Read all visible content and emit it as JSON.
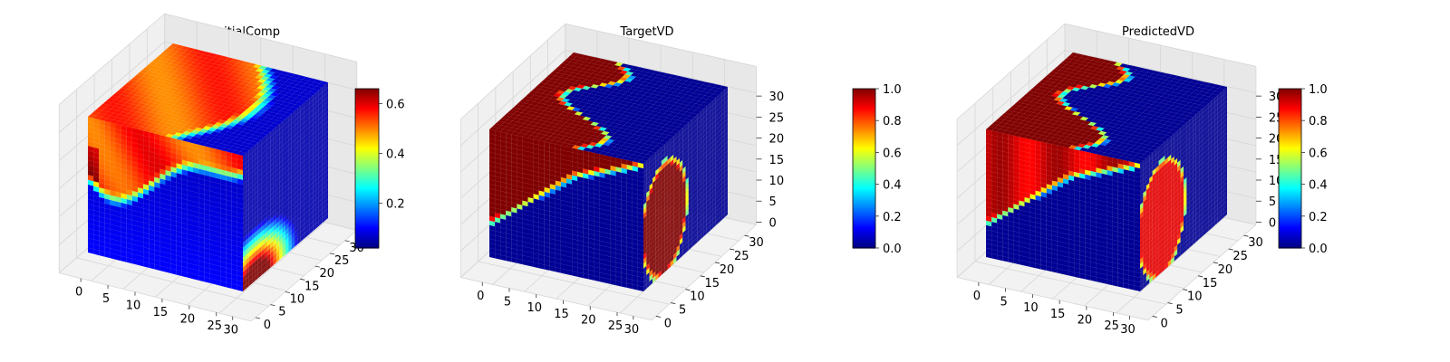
{
  "chart_data": [
    {
      "type": "heatmap",
      "subtype": "3d-voxel-cube",
      "title": "InitialComp",
      "colormap": "jet",
      "colorbar": {
        "min": 0.02,
        "max": 0.66,
        "ticks": [
          0.2,
          0.4,
          0.6
        ],
        "tick_labels": [
          "0.2",
          "0.4",
          "0.6"
        ]
      },
      "x_ticks": [
        "0",
        "5",
        "10",
        "15",
        "20",
        "25",
        "30"
      ],
      "y_ticks": [
        "0",
        "5",
        "10",
        "15",
        "20",
        "25",
        "30"
      ],
      "z_ticks": [
        "",
        "",
        "",
        "",
        "",
        "",
        ""
      ],
      "xlim": [
        0,
        32
      ],
      "ylim": [
        0,
        32
      ],
      "zlim": [
        0,
        32
      ],
      "field": "initial"
    },
    {
      "type": "heatmap",
      "subtype": "3d-voxel-cube",
      "title": "TargetVD",
      "colormap": "jet",
      "colorbar": {
        "min": 0.0,
        "max": 1.0,
        "ticks": [
          0.0,
          0.2,
          0.4,
          0.6,
          0.8,
          1.0
        ],
        "tick_labels": [
          "0.0",
          "0.2",
          "0.4",
          "0.6",
          "0.8",
          "1.0"
        ]
      },
      "x_ticks": [
        "0",
        "5",
        "10",
        "15",
        "20",
        "25",
        "30"
      ],
      "y_ticks": [
        "0",
        "5",
        "10",
        "15",
        "20",
        "25",
        "30"
      ],
      "z_ticks": [
        "0",
        "5",
        "10",
        "15",
        "20",
        "25",
        "30"
      ],
      "xlim": [
        0,
        32
      ],
      "ylim": [
        0,
        32
      ],
      "zlim": [
        0,
        32
      ],
      "field": "target"
    },
    {
      "type": "heatmap",
      "subtype": "3d-voxel-cube",
      "title": "PredictedVD",
      "colormap": "jet",
      "colorbar": {
        "min": 0.0,
        "max": 1.0,
        "ticks": [
          0.0,
          0.2,
          0.4,
          0.6,
          0.8,
          1.0
        ],
        "tick_labels": [
          "0.0",
          "0.2",
          "0.4",
          "0.6",
          "0.8",
          "1.0"
        ]
      },
      "x_ticks": [
        "0",
        "5",
        "10",
        "15",
        "20",
        "25",
        "30"
      ],
      "y_ticks": [
        "0",
        "5",
        "10",
        "15",
        "20",
        "25",
        "30"
      ],
      "z_ticks": [
        "0",
        "5",
        "10",
        "15",
        "20",
        "25",
        "30"
      ],
      "xlim": [
        0,
        32
      ],
      "ylim": [
        0,
        32
      ],
      "zlim": [
        0,
        32
      ],
      "field": "predicted"
    }
  ]
}
